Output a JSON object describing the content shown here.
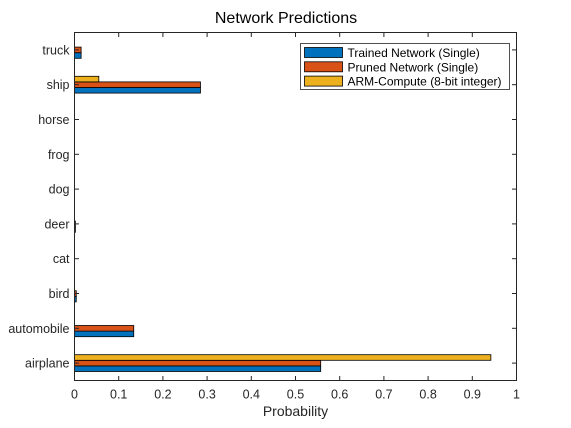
{
  "chart_data": {
    "type": "bar",
    "orientation": "horizontal",
    "title": "Network Predictions",
    "xlabel": "Probability",
    "ylabel": "",
    "xlim": [
      0,
      1
    ],
    "xticks": [
      "0",
      "0.1",
      "0.2",
      "0.3",
      "0.4",
      "0.5",
      "0.6",
      "0.7",
      "0.8",
      "0.9",
      "1"
    ],
    "categories": [
      "airplane",
      "automobile",
      "bird",
      "cat",
      "deer",
      "dog",
      "frog",
      "horse",
      "ship",
      "truck"
    ],
    "series": [
      {
        "name": "Trained Network (Single)",
        "color": "#0072BD",
        "values": [
          0.557,
          0.134,
          0.004,
          0.0,
          0.002,
          0.0,
          0.0,
          0.0,
          0.285,
          0.015
        ]
      },
      {
        "name": "Pruned Network (Single)",
        "color": "#D95319",
        "values": [
          0.557,
          0.134,
          0.004,
          0.0,
          0.002,
          0.0,
          0.0,
          0.0,
          0.285,
          0.015
        ]
      },
      {
        "name": "ARM-Compute (8-bit integer)",
        "color": "#EDB120",
        "values": [
          0.942,
          0.0,
          0.0,
          0.0,
          0.0,
          0.0,
          0.0,
          0.0,
          0.055,
          0.0
        ]
      }
    ],
    "legend_position": "top-right",
    "grid": false
  }
}
